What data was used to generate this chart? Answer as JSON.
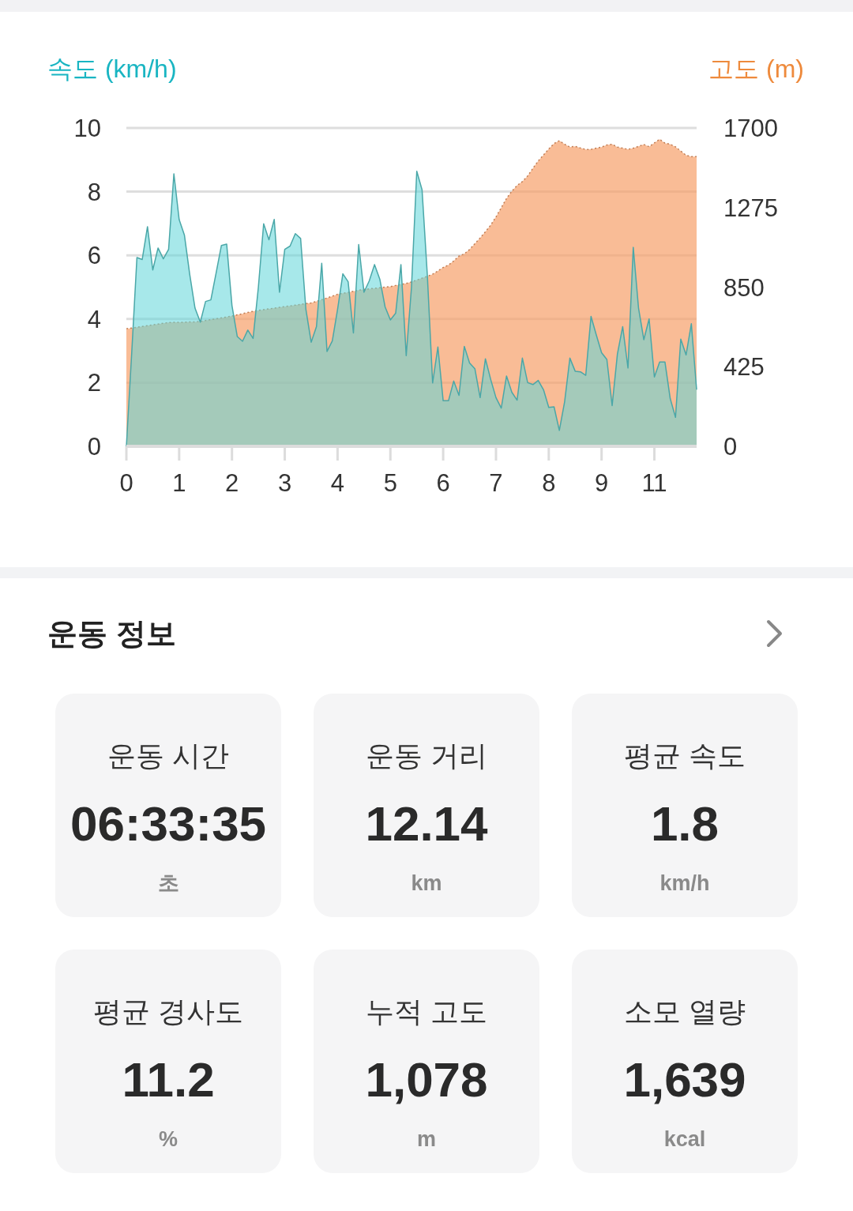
{
  "chart_data": [
    {
      "type": "area",
      "ylabel": "속도 (km/h)",
      "y2label": "고도 (m)",
      "grid": "y",
      "categories": [
        "0",
        null,
        null,
        null,
        null,
        null,
        null,
        null,
        null,
        null,
        "1",
        null,
        null,
        null,
        null,
        null,
        null,
        null,
        null,
        null,
        "2",
        null,
        null,
        null,
        null,
        null,
        null,
        null,
        null,
        null,
        "3",
        null,
        null,
        null,
        null,
        null,
        null,
        null,
        null,
        null,
        "4",
        null,
        null,
        null,
        null,
        null,
        null,
        null,
        null,
        null,
        "5",
        null,
        null,
        null,
        null,
        null,
        null,
        null,
        null,
        null,
        "6",
        null,
        null,
        null,
        null,
        null,
        null,
        null,
        null,
        null,
        "7",
        null,
        null,
        null,
        null,
        null,
        null,
        null,
        null,
        null,
        "8",
        null,
        null,
        null,
        null,
        null,
        null,
        null,
        null,
        null,
        "9",
        null,
        null,
        null,
        null,
        null,
        null,
        null,
        null,
        null,
        "11",
        null,
        null,
        null,
        null,
        null,
        null,
        null,
        null
      ],
      "ylim": [
        0,
        10
      ],
      "yticks": [
        0,
        2,
        4,
        6,
        8,
        10
      ],
      "y2lim": [
        0,
        1700
      ],
      "y2ticks": [
        0,
        425,
        850,
        1275,
        1700
      ],
      "series": [
        {
          "axis": "y2",
          "color": "#f7a06a",
          "line_style": "dotted",
          "values": [
            628,
            632,
            636,
            640,
            644,
            649,
            653,
            657,
            661,
            662,
            662,
            663,
            664,
            664,
            667,
            672,
            677,
            681,
            686,
            691,
            696,
            702,
            708,
            715,
            721,
            726,
            730,
            734,
            738,
            742,
            746,
            750,
            754,
            758,
            762,
            766,
            774,
            783,
            792,
            802,
            812,
            817,
            822,
            828,
            834,
            838,
            841,
            844,
            847,
            850,
            853,
            859,
            864,
            870,
            878,
            888,
            898,
            908,
            919,
            937,
            955,
            968,
            990,
            1016,
            1028,
            1051,
            1082,
            1113,
            1146,
            1181,
            1225,
            1274,
            1324,
            1362,
            1393,
            1414,
            1444,
            1485,
            1524,
            1556,
            1588,
            1617,
            1632,
            1613,
            1598,
            1602,
            1593,
            1585,
            1586,
            1592,
            1598,
            1609,
            1613,
            1598,
            1592,
            1586,
            1592,
            1602,
            1612,
            1600,
            1620,
            1640,
            1619,
            1613,
            1599,
            1577,
            1554,
            1547,
            1547
          ]
        },
        {
          "color": "#5fd6d8",
          "values": [
            0,
            2.9,
            5.93,
            5.87,
            6.9,
            5.54,
            6.23,
            5.89,
            6.19,
            8.56,
            7.12,
            6.63,
            5.4,
            4.34,
            3.9,
            4.55,
            4.6,
            5.45,
            6.31,
            6.35,
            4.42,
            3.45,
            3.3,
            3.65,
            3.39,
            5.0,
            6.99,
            6.49,
            7.13,
            4.84,
            6.19,
            6.29,
            6.68,
            6.53,
            4.3,
            3.27,
            3.76,
            5.75,
            2.98,
            3.31,
            4.3,
            5.42,
            5.17,
            3.56,
            6.34,
            4.84,
            5.2,
            5.71,
            5.25,
            4.38,
            3.97,
            4.18,
            5.71,
            2.85,
            5.0,
            8.64,
            8.06,
            5.38,
            1.99,
            3.12,
            1.43,
            1.43,
            2.05,
            1.6,
            3.14,
            2.62,
            2.44,
            1.53,
            2.75,
            2.1,
            1.53,
            1.2,
            2.21,
            1.7,
            1.45,
            2.77,
            2.0,
            1.94,
            2.07,
            1.78,
            1.22,
            1.24,
            0.5,
            1.4,
            2.77,
            2.36,
            2.34,
            2.23,
            4.08,
            3.5,
            2.94,
            2.73,
            1.28,
            2.9,
            3.76,
            2.46,
            6.25,
            4.34,
            3.35,
            4.0,
            2.18,
            2.65,
            2.65,
            1.5,
            0.91,
            3.37,
            2.87,
            3.85,
            1.78
          ]
        }
      ]
    },
    {
      "type": "other",
      "title": "운동 정보",
      "annotations": [
        "운동 시간",
        "06:33:35",
        "초",
        "운동 거리",
        "12.14",
        "km",
        "평균 속도",
        "1.8",
        "km/h",
        "평균 경사도",
        "11.2",
        "%",
        "누적 고도",
        "1,078",
        "m",
        "소모 열량",
        "1,639",
        "kcal"
      ]
    }
  ]
}
